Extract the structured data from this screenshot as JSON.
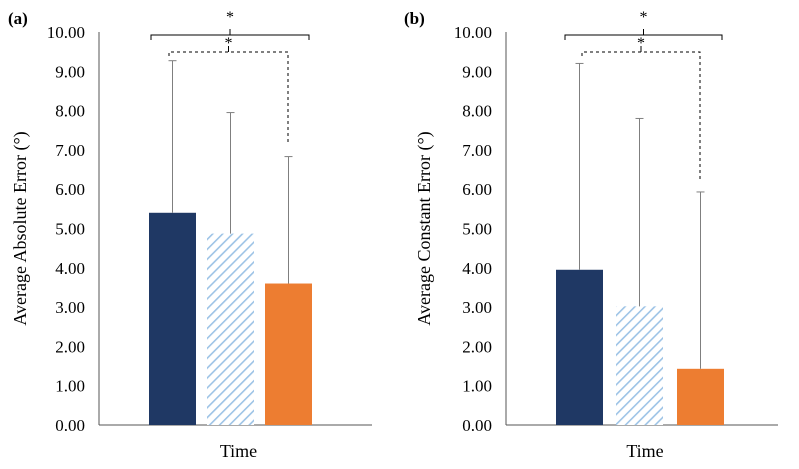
{
  "chart_data": [
    {
      "type": "bar",
      "panel_label": "(a)",
      "xlabel": "Time",
      "ylabel": "Average Absolute Error (°)",
      "ylim": [
        0,
        10
      ],
      "yticks": [
        "0.00",
        "1.00",
        "2.00",
        "3.00",
        "4.00",
        "5.00",
        "6.00",
        "7.00",
        "8.00",
        "9.00",
        "10.00"
      ],
      "bars": [
        {
          "value": 5.4,
          "error": 3.87,
          "color": "#1f3864",
          "pattern": "solid"
        },
        {
          "value": 4.87,
          "error": 3.08,
          "color": "#9dc3e6",
          "pattern": "hatched"
        },
        {
          "value": 3.6,
          "error": 3.23,
          "color": "#ed7d31",
          "pattern": "solid"
        }
      ],
      "annotations": [
        {
          "text": "*",
          "from_bar": 0,
          "to_bar": 2,
          "line": "solid"
        },
        {
          "text": "*",
          "from_bar": 0,
          "to_bar": 2,
          "line": "dashed"
        }
      ]
    },
    {
      "type": "bar",
      "panel_label": "(b)",
      "xlabel": "Time",
      "ylabel": "Average Constant Error (°)",
      "ylim": [
        0,
        10
      ],
      "yticks": [
        "0.00",
        "1.00",
        "2.00",
        "3.00",
        "4.00",
        "5.00",
        "6.00",
        "7.00",
        "8.00",
        "9.00",
        "10.00"
      ],
      "bars": [
        {
          "value": 3.95,
          "error": 5.25,
          "color": "#1f3864",
          "pattern": "solid"
        },
        {
          "value": 3.02,
          "error": 4.78,
          "color": "#9dc3e6",
          "pattern": "hatched"
        },
        {
          "value": 1.43,
          "error": 4.5,
          "color": "#ed7d31",
          "pattern": "solid"
        }
      ],
      "annotations": [
        {
          "text": "*",
          "from_bar": 0,
          "to_bar": 2,
          "line": "solid"
        },
        {
          "text": "*",
          "from_bar": 0,
          "to_bar": 2,
          "line": "dashed"
        }
      ]
    }
  ]
}
